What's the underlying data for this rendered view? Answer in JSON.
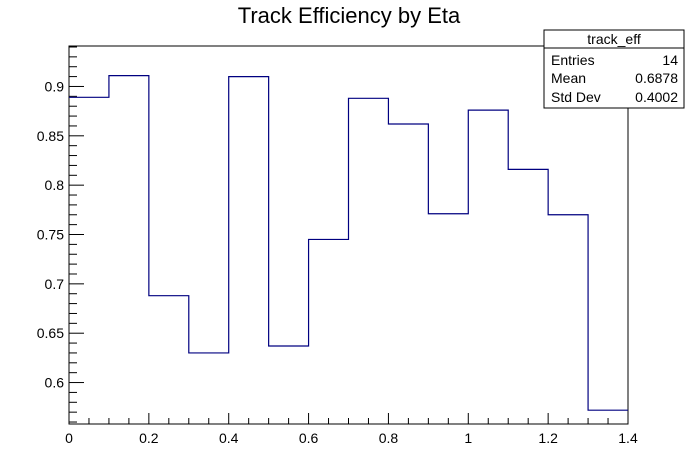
{
  "chart_data": {
    "type": "histogram-step",
    "title": "Track Efficiency by Eta",
    "xlabel": "",
    "ylabel": "",
    "xlim": [
      0,
      1.4
    ],
    "ylim": [
      0.558,
      0.941
    ],
    "bin_edges": [
      0,
      0.1,
      0.2,
      0.3,
      0.4,
      0.5,
      0.6,
      0.7,
      0.8,
      0.9,
      1.0,
      1.1,
      1.2,
      1.3,
      1.4
    ],
    "values": [
      0.889,
      0.911,
      0.688,
      0.63,
      0.91,
      0.637,
      0.745,
      0.888,
      0.862,
      0.771,
      0.876,
      0.816,
      0.77,
      0.572
    ],
    "x_ticks": [
      0,
      0.2,
      0.4,
      0.6,
      0.8,
      1.0,
      1.2,
      1.4
    ],
    "x_tick_labels": [
      "0",
      "0.2",
      "0.4",
      "0.6",
      "0.8",
      "1",
      "1.2",
      "1.4"
    ],
    "y_ticks": [
      0.6,
      0.65,
      0.7,
      0.75,
      0.8,
      0.85,
      0.9
    ],
    "y_tick_labels": [
      "0.6",
      "0.65",
      "0.7",
      "0.75",
      "0.8",
      "0.85",
      "0.9"
    ],
    "grid": false,
    "line_color": "#000080",
    "stats_box": {
      "name": "track_eff",
      "placement": "top-right",
      "rows": [
        {
          "label": "Entries",
          "value": "14"
        },
        {
          "label": "Mean",
          "value": "0.6878"
        },
        {
          "label": "Std Dev",
          "value": "0.4002"
        }
      ]
    }
  }
}
